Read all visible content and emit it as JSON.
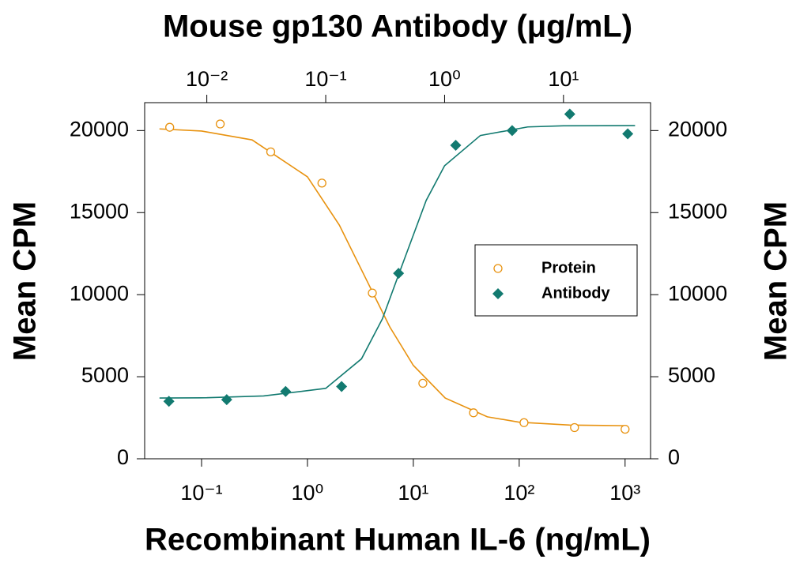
{
  "chart_data": {
    "type": "scatter",
    "title": "Mouse gp130 Antibody (μg/mL)",
    "xlabel": "Recombinant Human IL-6 (ng/mL)",
    "ylabel": "Mean CPM",
    "y2label": "Mean CPM",
    "xscale": "log",
    "x2scale": "log",
    "xlim": [
      0.029,
      1740
    ],
    "xticks": [
      {
        "value": 0.1,
        "label": "10⁻¹"
      },
      {
        "value": 1,
        "label": "10⁰"
      },
      {
        "value": 10,
        "label": "10¹"
      },
      {
        "value": 100,
        "label": "10²"
      },
      {
        "value": 1000,
        "label": "10³"
      }
    ],
    "x2lim": [
      0.003,
      54
    ],
    "x2ticks": [
      {
        "value": 0.01,
        "label": "10⁻²"
      },
      {
        "value": 0.1,
        "label": "10⁻¹"
      },
      {
        "value": 1,
        "label": "10⁰"
      },
      {
        "value": 10,
        "label": "10¹"
      }
    ],
    "ylim": [
      0,
      21700
    ],
    "yticks": [
      0,
      5000,
      10000,
      15000,
      20000
    ],
    "y2lim": [
      0,
      21700
    ],
    "y2ticks": [
      0,
      5000,
      10000,
      15000,
      20000
    ],
    "legend": "center right",
    "series": [
      {
        "name": "Protein",
        "color": "#e8920f",
        "marker": "open-circle",
        "xaxis": "x",
        "x": [
          0.05,
          0.15,
          0.45,
          1.37,
          4.1,
          12.3,
          37,
          111,
          333,
          1000
        ],
        "values": [
          20200,
          20400,
          18700,
          16800,
          10100,
          4600,
          2800,
          2200,
          1900,
          1800
        ],
        "curve_x": [
          0.04,
          0.1,
          0.3,
          1,
          2,
          3.5,
          6,
          10,
          20,
          50,
          100,
          300,
          1000
        ],
        "curve_y": [
          20100,
          19970,
          19430,
          17180,
          14240,
          11075,
          8030,
          5690,
          3700,
          2555,
          2230,
          2055,
          2015
        ]
      },
      {
        "name": "Antibody",
        "color": "#127a70",
        "marker": "filled-diamond",
        "xaxis": "x2",
        "x": [
          0.0048,
          0.0147,
          0.046,
          0.136,
          0.41,
          1.24,
          3.7,
          11.3,
          34.7
        ],
        "values": [
          3500,
          3600,
          4100,
          4400,
          11300,
          19100,
          20000,
          21000,
          19800
        ],
        "curve_x": [
          0.004,
          0.01,
          0.03,
          0.1,
          0.2,
          0.3,
          0.45,
          0.7,
          1,
          2,
          5,
          10,
          40
        ],
        "curve_y": [
          3700,
          3718,
          3827,
          4290,
          6090,
          8530,
          12000,
          15740,
          17855,
          19700,
          20220,
          20290,
          20300
        ]
      }
    ]
  }
}
